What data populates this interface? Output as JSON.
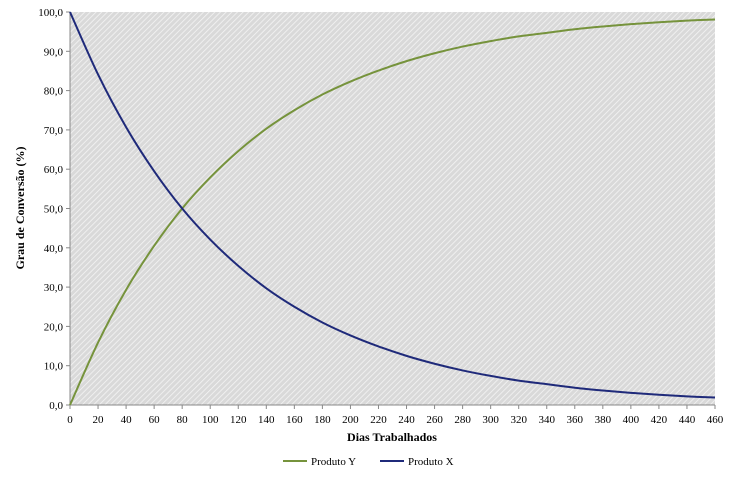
{
  "chart_data": {
    "type": "line",
    "title": "",
    "xlabel": "Dias Trabalhados",
    "ylabel": "Grau de Conversão (%)",
    "xlim": [
      0,
      460
    ],
    "ylim": [
      0,
      100
    ],
    "x_ticks": [
      "0",
      "20",
      "40",
      "60",
      "80",
      "100",
      "120",
      "140",
      "160",
      "180",
      "200",
      "220",
      "240",
      "260",
      "280",
      "300",
      "320",
      "340",
      "360",
      "380",
      "400",
      "420",
      "440",
      "460"
    ],
    "y_ticks": [
      "0,0",
      "10,0",
      "20,0",
      "30,0",
      "40,0",
      "50,0",
      "60,0",
      "70,0",
      "80,0",
      "90,0",
      "100,0"
    ],
    "legend_position": "bottom",
    "plot_background": "hatched gray",
    "x": [
      0,
      20,
      40,
      60,
      80,
      100,
      120,
      140,
      160,
      180,
      200,
      220,
      240,
      260,
      280,
      300,
      320,
      340,
      360,
      380,
      400,
      420,
      440,
      460
    ],
    "series": [
      {
        "name": "Produto Y",
        "color": "#76933c",
        "values": [
          0,
          15.9,
          29.3,
          40.5,
          50.0,
          57.9,
          64.6,
          70.3,
          75.0,
          79.0,
          82.3,
          85.1,
          87.5,
          89.5,
          91.2,
          92.6,
          93.8,
          94.7,
          95.6,
          96.3,
          96.9,
          97.4,
          97.8,
          98.1
        ]
      },
      {
        "name": "Produto X",
        "color": "#1f2a7a",
        "values": [
          100,
          84.1,
          70.7,
          59.5,
          50.0,
          42.1,
          35.4,
          29.7,
          25.0,
          21.0,
          17.7,
          14.9,
          12.5,
          10.5,
          8.8,
          7.4,
          6.2,
          5.3,
          4.4,
          3.7,
          3.1,
          2.6,
          2.2,
          1.9
        ]
      }
    ]
  }
}
